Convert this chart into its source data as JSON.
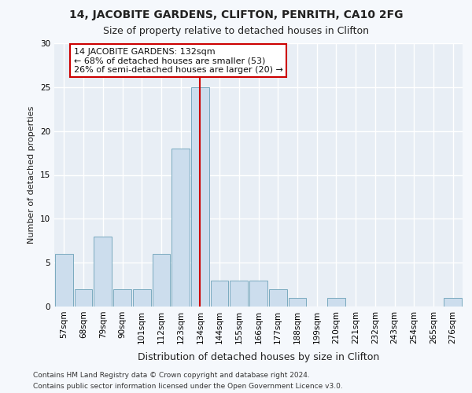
{
  "title1": "14, JACOBITE GARDENS, CLIFTON, PENRITH, CA10 2FG",
  "title2": "Size of property relative to detached houses in Clifton",
  "xlabel": "Distribution of detached houses by size in Clifton",
  "ylabel": "Number of detached properties",
  "categories": [
    "57sqm",
    "68sqm",
    "79sqm",
    "90sqm",
    "101sqm",
    "112sqm",
    "123sqm",
    "134sqm",
    "144sqm",
    "155sqm",
    "166sqm",
    "177sqm",
    "188sqm",
    "199sqm",
    "210sqm",
    "221sqm",
    "232sqm",
    "243sqm",
    "254sqm",
    "265sqm",
    "276sqm"
  ],
  "values": [
    6,
    2,
    8,
    2,
    2,
    6,
    18,
    25,
    3,
    3,
    3,
    2,
    1,
    0,
    1,
    0,
    0,
    0,
    0,
    0,
    1
  ],
  "bar_color": "#ccdded",
  "bar_edge_color": "#7aaabf",
  "highlight_index": 7,
  "highlight_line_color": "#cc0000",
  "annotation_line1": "14 JACOBITE GARDENS: 132sqm",
  "annotation_line2": "← 68% of detached houses are smaller (53)",
  "annotation_line3": "26% of semi-detached houses are larger (20) →",
  "annotation_box_color": "#ffffff",
  "annotation_box_edge": "#cc0000",
  "ylim": [
    0,
    30
  ],
  "yticks": [
    0,
    5,
    10,
    15,
    20,
    25,
    30
  ],
  "plot_bg_color": "#e8eef5",
  "fig_bg_color": "#f5f8fc",
  "footer1": "Contains HM Land Registry data © Crown copyright and database right 2024.",
  "footer2": "Contains public sector information licensed under the Open Government Licence v3.0.",
  "title1_fontsize": 10,
  "title2_fontsize": 9,
  "xlabel_fontsize": 9,
  "ylabel_fontsize": 8,
  "tick_fontsize": 7.5,
  "footer_fontsize": 6.5,
  "ann_fontsize": 8
}
